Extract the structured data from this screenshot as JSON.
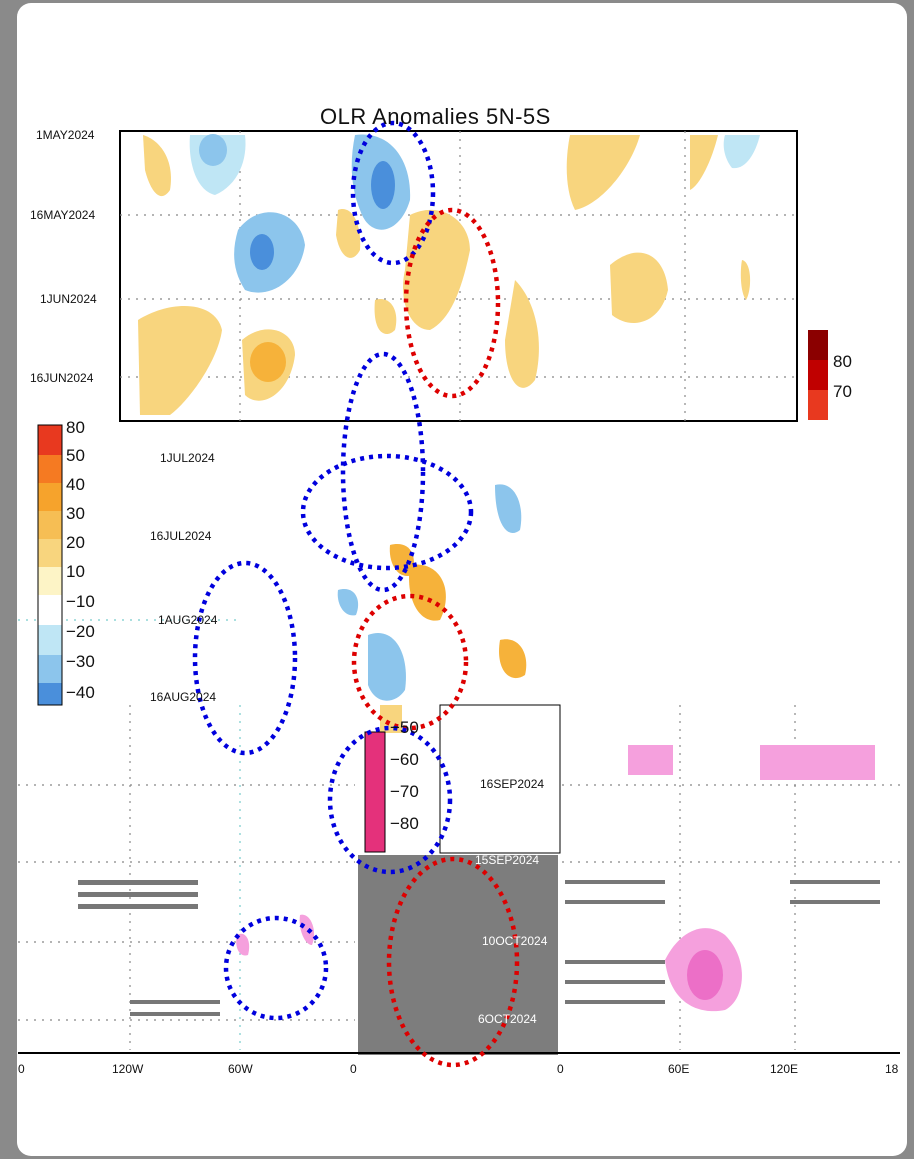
{
  "chart_data": {
    "type": "heatmap",
    "title": "OLR Anomalies 5N-5S",
    "y_tick_labels_left": [
      "1MAY2024",
      "16MAY2024",
      "1JUN2024",
      "16JUN2024",
      "1JUL2024",
      "16JUL2024",
      "1AUG2024",
      "16AUG2024"
    ],
    "y_tick_labels_inset": [
      "16SEP2024",
      "15SEP2024",
      "10OCT2024",
      "6OCT2024"
    ],
    "x_tick_labels": [
      "0",
      "120W",
      "60W",
      "0",
      "0",
      "60E",
      "120E",
      "18"
    ],
    "legend_left": [
      "80",
      "50",
      "40",
      "30",
      "20",
      "10",
      "−10",
      "−20",
      "−30",
      "−40"
    ],
    "legend_right_top": [
      "80",
      "70"
    ],
    "legend_middle": [
      "−50",
      "−60",
      "−70",
      "−80"
    ],
    "colors": {
      "positive_light": "#f8d57e",
      "positive_mid": "#f6b23a",
      "negative_light": "#bfe6f5",
      "negative_mid": "#8cc5ec",
      "negative_dark": "#4a8fdb",
      "magenta": "#e4317b",
      "pink": "#f5a0dd",
      "annotation_blue": "#0000dd",
      "annotation_red": "#dd0000"
    },
    "annotations": [
      {
        "shape": "ellipse",
        "color": "blue"
      },
      {
        "shape": "ellipse",
        "color": "red"
      },
      {
        "shape": "ellipse",
        "color": "blue"
      },
      {
        "shape": "ellipse",
        "color": "blue"
      },
      {
        "shape": "ellipse",
        "color": "blue"
      },
      {
        "shape": "ellipse",
        "color": "red"
      },
      {
        "shape": "ellipse",
        "color": "blue"
      },
      {
        "shape": "ellipse",
        "color": "blue"
      },
      {
        "shape": "ellipse",
        "color": "red"
      }
    ]
  }
}
